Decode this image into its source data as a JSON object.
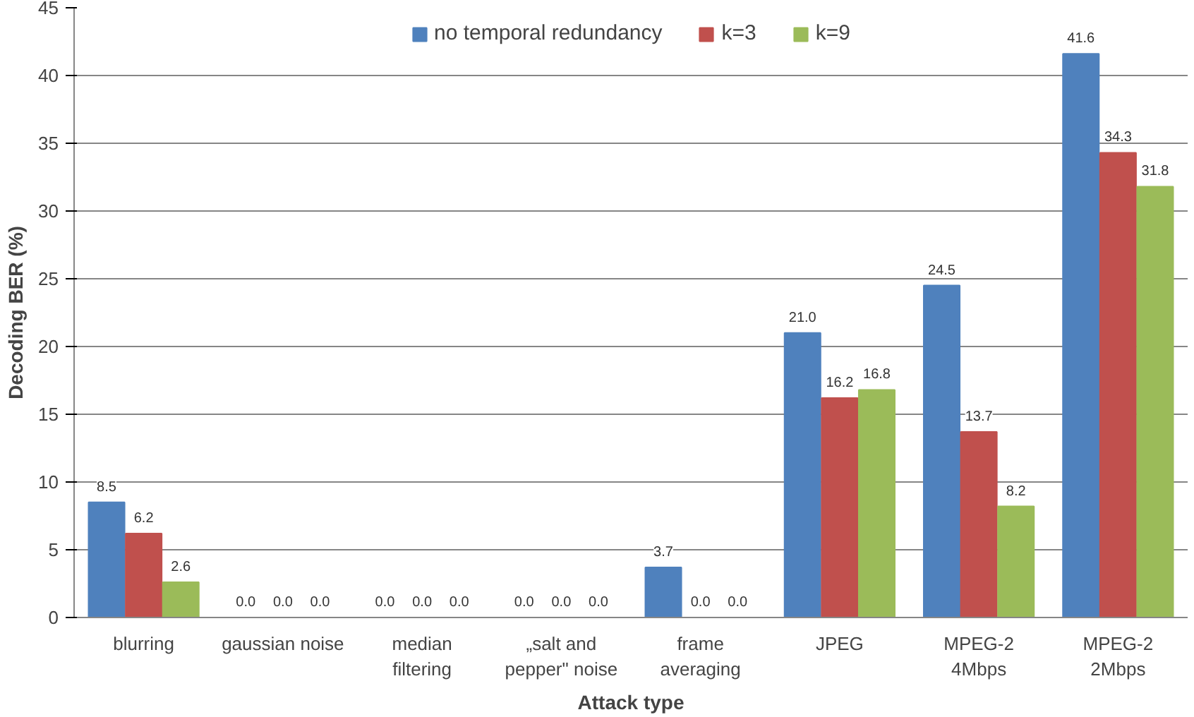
{
  "chart_data": {
    "type": "bar",
    "xlabel": "Attack type",
    "ylabel": "Decoding BER (%)",
    "categories": [
      "blurring",
      "gaussian noise",
      "median\nfiltering",
      "„salt and\npepper\" noise",
      "frame\naveraging",
      "JPEG",
      "MPEG-2\n4Mbps",
      "MPEG-2\n2Mbps"
    ],
    "series": [
      {
        "name": "no temporal redundancy",
        "color": "#4f81bd",
        "values": [
          8.5,
          0.0,
          0.0,
          0.0,
          3.7,
          21.0,
          24.5,
          41.6
        ],
        "value_labels": [
          "8.5",
          "0.0",
          "0.0",
          "0.0",
          "3.7",
          "21.0",
          "24.5",
          "41.6"
        ]
      },
      {
        "name": "k=3",
        "color": "#c0504d",
        "values": [
          6.2,
          0.0,
          0.0,
          0.0,
          0.0,
          16.2,
          13.7,
          34.3
        ],
        "value_labels": [
          "6.2",
          "0.0",
          "0.0",
          "0.0",
          "0.0",
          "16.2",
          "13.7",
          "34.3"
        ]
      },
      {
        "name": "k=9",
        "color": "#9bbb59",
        "values": [
          2.6,
          0.0,
          0.0,
          0.0,
          0.0,
          16.8,
          8.2,
          31.8
        ],
        "value_labels": [
          "2.6",
          "0.0",
          "0.0",
          "0.0",
          "0.0",
          "16.8",
          "8.2",
          "31.8"
        ]
      }
    ],
    "ylim": [
      0,
      45
    ],
    "yticks": [
      0,
      5,
      10,
      15,
      20,
      25,
      30,
      35,
      40,
      45
    ],
    "grid": "y",
    "legend": "top"
  }
}
